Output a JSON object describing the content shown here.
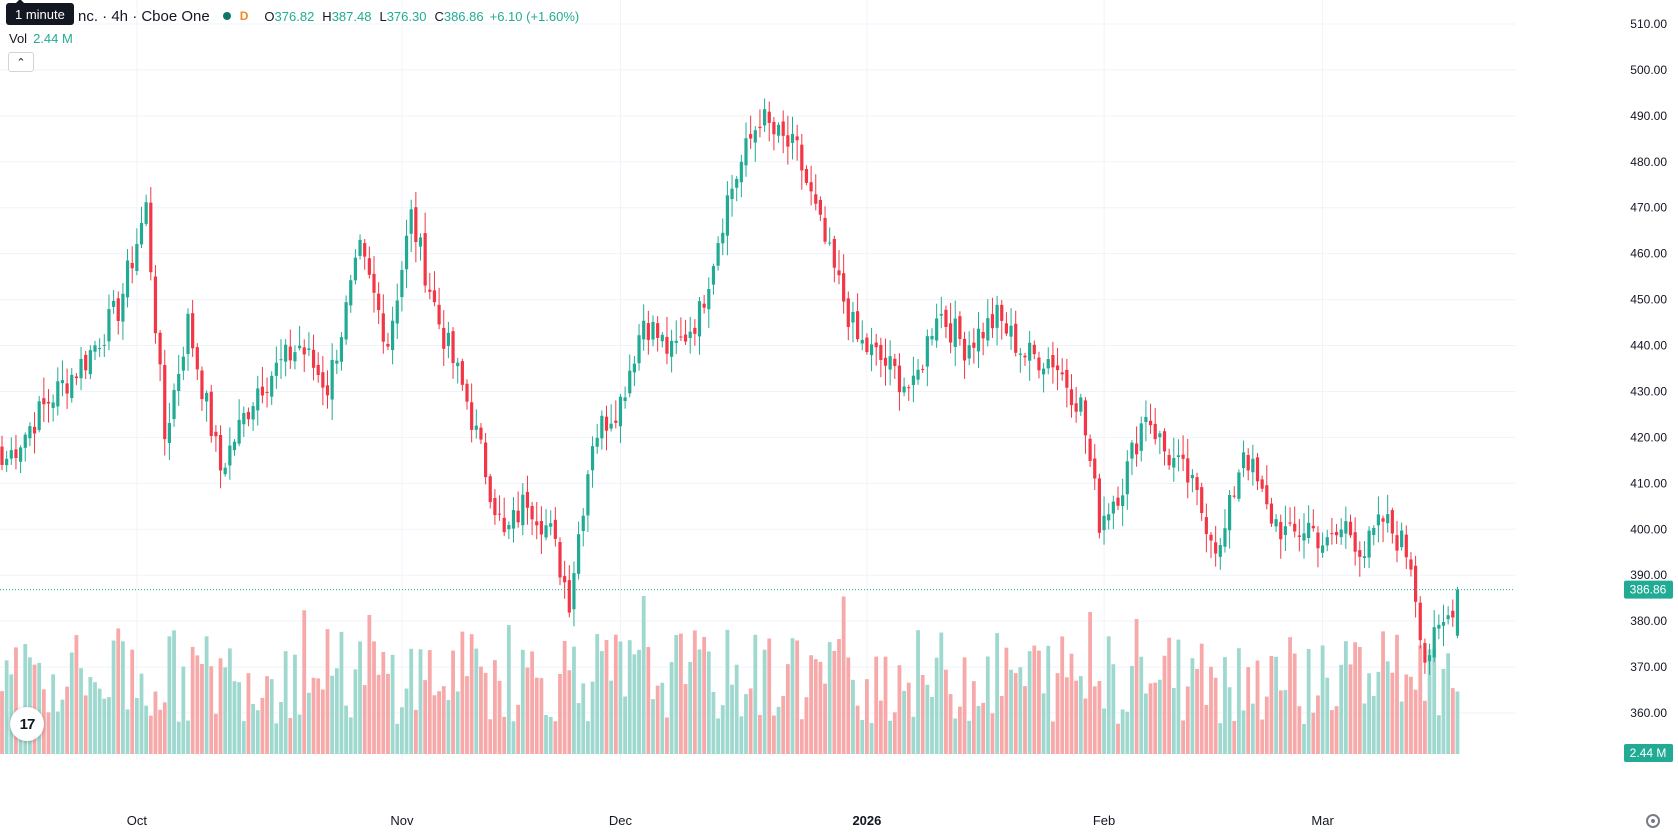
{
  "legend": {
    "symbol_title": "nc. · 4h · Cboe One",
    "interval_badge": "D",
    "tooltip": "1 minute",
    "open_label": "O",
    "open_value": "376.82",
    "high_label": "H",
    "high_value": "387.48",
    "low_label": "L",
    "low_value": "376.30",
    "close_label": "C",
    "close_value": "386.86",
    "change": "+6.10 (+1.60%)",
    "vol_label": "Vol",
    "vol_value": "2.44 M"
  },
  "price_axis": {
    "ticks": [
      "510.00",
      "500.00",
      "490.00",
      "480.00",
      "470.00",
      "460.00",
      "450.00",
      "440.00",
      "430.00",
      "420.00",
      "410.00",
      "400.00",
      "390.00",
      "380.00",
      "370.00",
      "360.00"
    ],
    "last_price_label": "386.86",
    "volume_label": "2.44 M"
  },
  "time_axis": {
    "labels": [
      "Oct",
      "Nov",
      "Dec",
      "2026",
      "Feb",
      "Mar"
    ]
  },
  "colors": {
    "up": "#22ab94",
    "down": "#f23645",
    "up_volume": "#9fd8cf",
    "down_volume": "#f7a9a9",
    "grid": "#f0f3fa",
    "axis_text": "#131722"
  },
  "chart_data": {
    "type": "candlestick",
    "interval": "4h",
    "exchange": "Cboe One",
    "y_range": [
      360,
      510
    ],
    "anchors": [
      {
        "label": "Oct",
        "index": 29
      },
      {
        "label": "Nov",
        "index": 86
      },
      {
        "label": "Dec",
        "index": 133
      },
      {
        "label": "2026",
        "index": 186
      },
      {
        "label": "Feb",
        "index": 237
      },
      {
        "label": "Mar",
        "index": 284
      }
    ],
    "key_closes": [
      [
        0,
        414
      ],
      [
        10,
        428
      ],
      [
        18,
        437
      ],
      [
        25,
        448
      ],
      [
        31,
        470
      ],
      [
        35,
        420
      ],
      [
        40,
        445
      ],
      [
        47,
        413
      ],
      [
        55,
        431
      ],
      [
        64,
        440
      ],
      [
        70,
        431
      ],
      [
        77,
        460
      ],
      [
        83,
        441
      ],
      [
        88,
        468
      ],
      [
        94,
        445
      ],
      [
        100,
        428
      ],
      [
        108,
        398
      ],
      [
        113,
        407
      ],
      [
        118,
        399
      ],
      [
        122,
        385
      ],
      [
        127,
        420
      ],
      [
        133,
        428
      ],
      [
        138,
        446
      ],
      [
        144,
        438
      ],
      [
        150,
        447
      ],
      [
        156,
        472
      ],
      [
        163,
        490
      ],
      [
        166,
        486
      ],
      [
        171,
        482
      ],
      [
        178,
        459
      ],
      [
        184,
        441
      ],
      [
        190,
        436
      ],
      [
        196,
        430
      ],
      [
        201,
        448
      ],
      [
        207,
        440
      ],
      [
        214,
        446
      ],
      [
        220,
        438
      ],
      [
        226,
        437
      ],
      [
        232,
        427
      ],
      [
        236,
        402
      ],
      [
        241,
        410
      ],
      [
        246,
        426
      ],
      [
        250,
        417
      ],
      [
        255,
        411
      ],
      [
        262,
        395
      ],
      [
        267,
        418
      ],
      [
        272,
        404
      ],
      [
        277,
        398
      ],
      [
        281,
        401
      ],
      [
        285,
        396
      ],
      [
        289,
        401
      ],
      [
        293,
        395
      ],
      [
        297,
        402
      ],
      [
        301,
        397
      ],
      [
        303,
        393
      ],
      [
        306,
        372
      ],
      [
        309,
        377
      ],
      [
        311,
        381
      ],
      [
        313,
        386.86
      ]
    ],
    "last": {
      "open": 376.82,
      "high": 387.48,
      "low": 376.3,
      "close": 386.86,
      "change": 6.1,
      "change_pct": 1.6
    },
    "last_volume": "2.44M"
  }
}
